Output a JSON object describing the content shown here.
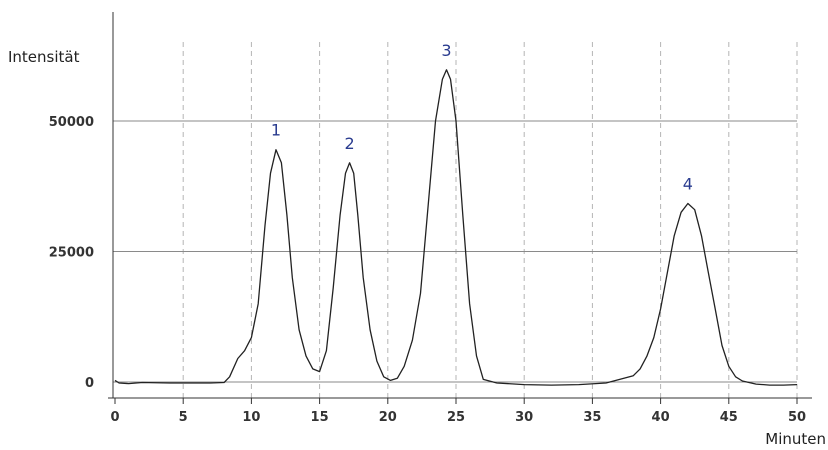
{
  "chart_data": {
    "type": "line",
    "ylabel": "Intensität",
    "xlabel": "Minuten",
    "xlim": [
      0,
      50
    ],
    "ylim": [
      -1500,
      70000
    ],
    "x_ticks": [
      0,
      5,
      10,
      15,
      20,
      25,
      30,
      35,
      40,
      45,
      50
    ],
    "y_ticks": [
      0,
      25000,
      50000
    ],
    "grid": {
      "x": "dashed vertical",
      "y": "solid horizontal"
    },
    "series": [
      {
        "color": "#222222",
        "x": [
          0,
          0.3,
          1,
          2,
          4,
          6,
          7,
          8,
          8.4,
          9,
          9.5,
          10,
          10.5,
          11,
          11.4,
          11.8,
          12.2,
          12.6,
          13,
          13.5,
          14,
          14.5,
          15,
          15.5,
          16,
          16.5,
          16.9,
          17.2,
          17.5,
          17.8,
          18.2,
          18.7,
          19.2,
          19.7,
          20.2,
          20.7,
          21.2,
          21.8,
          22.4,
          23,
          23.5,
          24,
          24.3,
          24.6,
          25,
          25.5,
          26,
          26.5,
          27,
          28,
          30,
          32,
          34,
          36,
          37,
          38,
          38.5,
          39,
          39.5,
          40,
          40.5,
          41,
          41.5,
          42,
          42.5,
          43,
          43.5,
          44,
          44.5,
          45,
          45.5,
          46,
          47,
          48,
          49,
          50
        ],
        "values": [
          300,
          -200,
          -300,
          -100,
          -200,
          -200,
          -200,
          -100,
          1000,
          4500,
          6000,
          8500,
          15000,
          30000,
          40000,
          44500,
          42000,
          32000,
          20000,
          10000,
          5000,
          2500,
          2000,
          6000,
          18000,
          32000,
          40000,
          42000,
          40000,
          32000,
          20000,
          10000,
          4000,
          1000,
          300,
          700,
          3000,
          8000,
          17000,
          35000,
          50000,
          58000,
          59800,
          58000,
          50000,
          32000,
          15000,
          5000,
          500,
          -200,
          -500,
          -600,
          -500,
          -200,
          500,
          1200,
          2500,
          5000,
          8500,
          14000,
          21000,
          28000,
          32500,
          34200,
          33000,
          28000,
          21000,
          14000,
          7000,
          3000,
          1000,
          200,
          -400,
          -600,
          -600,
          -500
        ]
      }
    ],
    "annotations": [
      {
        "text": "1",
        "x": 11.8,
        "y": 44500
      },
      {
        "text": "2",
        "x": 17.2,
        "y": 42000
      },
      {
        "text": "3",
        "x": 24.3,
        "y": 59800
      },
      {
        "text": "4",
        "x": 42,
        "y": 34200
      }
    ]
  }
}
